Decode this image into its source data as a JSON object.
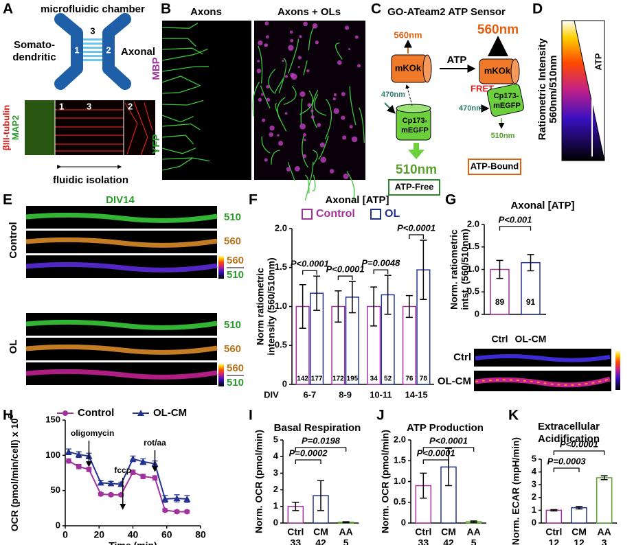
{
  "panels": {
    "letters": [
      "A",
      "B",
      "C",
      "D",
      "E",
      "F",
      "G",
      "H",
      "I",
      "J",
      "K"
    ],
    "A": {
      "title": "microfluidic chamber",
      "left": [
        "Somato-",
        "dendritic"
      ],
      "right": "Axonal",
      "compartments": [
        "1",
        "2",
        "3"
      ],
      "stains": [
        "MAP2",
        "βIII-tubulin"
      ],
      "caption": "fluidic isolation"
    },
    "B": {
      "columns": [
        "Axons",
        "Axons + OLs"
      ],
      "stains": [
        "MBP",
        "YFP"
      ]
    },
    "C": {
      "title": "GO-ATeam2 ATP Sensor",
      "ligand": "ATP",
      "acceptor": "mKOk",
      "donor": [
        "Cp173-",
        "mEGFP"
      ],
      "excitation": "470nm",
      "emission_acceptor": "560nm",
      "emission_donor": "510nm",
      "fret": "FRET",
      "states": [
        "ATP-Free",
        "ATP-Bound"
      ]
    },
    "D": {
      "label": [
        "Ratiometric Intensity",
        "560nm/510nm"
      ],
      "arrow": "ATP"
    },
    "E": {
      "title": "DIV14",
      "groups": [
        "Control",
        "OL"
      ],
      "channels": [
        "510",
        "560"
      ]
    },
    "G": {
      "images": [
        "Ctrl",
        "OL-CM"
      ]
    }
  },
  "chart_data": [
    {
      "type": "bar",
      "title": "Axonal [ATP]",
      "ylabel": [
        "Norm  ratiometric",
        "intensity (560/510nm)"
      ],
      "x_label": "DIV",
      "categories": [
        "6-7",
        "8-9",
        "10-11",
        "14-15"
      ],
      "series": [
        {
          "name": "Control",
          "color": "#a0329b",
          "values": [
            1.0,
            1.0,
            1.0,
            1.0
          ],
          "errors": [
            0.28,
            0.2,
            0.25,
            0.14
          ],
          "n": [
            142,
            172,
            34,
            76
          ]
        },
        {
          "name": "OL",
          "color": "#23318e",
          "values": [
            1.17,
            1.12,
            1.15,
            1.47
          ],
          "errors": [
            0.22,
            0.2,
            0.25,
            0.38
          ],
          "n": [
            177,
            195,
            52,
            78
          ]
        }
      ],
      "p_labels": [
        "P<0.0001",
        "P<0.0001",
        "P=0.0048",
        "P<0.0001"
      ],
      "ylim": [
        0,
        2
      ],
      "yticks": [
        0,
        0.5,
        {
          "value": 1,
          "label": "1.0"
        },
        1.5,
        {
          "value": 2,
          "label": "2.0"
        }
      ]
    },
    {
      "type": "bar",
      "title": "Axonal [ATP]",
      "ylabel": [
        "Norm. ratiometric",
        "intst. (560/510nm)"
      ],
      "categories": [
        "Ctrl",
        "OL-CM"
      ],
      "values": [
        1.0,
        1.15
      ],
      "errors": [
        0.2,
        0.18
      ],
      "n": [
        89,
        91
      ],
      "colors": [
        "#a0329b",
        "#23318e"
      ],
      "p_labels": [
        "P<0.001"
      ],
      "ylim": [
        0,
        2
      ],
      "yticks": [
        0,
        0.5,
        {
          "value": 1,
          "label": "1.0"
        },
        1.5,
        {
          "value": 2,
          "label": "2.0"
        }
      ]
    },
    {
      "type": "line",
      "ylabel": "OCR (pmol/min/cell) x 10",
      "ylabel_sup": "5",
      "xlabel": "Time (min)",
      "x": [
        2,
        8,
        14,
        21,
        27,
        33,
        40,
        46,
        53,
        59,
        66,
        72
      ],
      "series": [
        {
          "name": "Control",
          "color": "#a0329b",
          "marker": "circle",
          "values": [
            92,
            84,
            80,
            45,
            44,
            44,
            76,
            70,
            68,
            22,
            20,
            20
          ],
          "errors": [
            3,
            3,
            3,
            2,
            2,
            2,
            3,
            3,
            3,
            2,
            2,
            2
          ]
        },
        {
          "name": "OL-CM",
          "color": "#23318e",
          "marker": "triangle",
          "values": [
            105,
            101,
            99,
            61,
            60,
            59,
            95,
            91,
            88,
            38,
            39,
            38
          ],
          "errors": [
            4,
            4,
            4,
            3,
            3,
            3,
            4,
            4,
            4,
            5,
            5,
            5
          ]
        }
      ],
      "annotations": [
        "oligomycin",
        "fccp",
        "rot/aa"
      ],
      "xlim": [
        0,
        80
      ],
      "xticks": [
        0,
        20,
        40,
        60,
        80
      ],
      "ylim": [
        0,
        150
      ],
      "yticks": [
        0,
        50,
        100,
        150
      ]
    },
    {
      "type": "bar",
      "title": "Basal Respiration",
      "ylabel": [
        "Norm. OCR (pmol/min)"
      ],
      "categories": [
        "Ctrl",
        "CM",
        "AA"
      ],
      "values": [
        1.0,
        1.65,
        0.05
      ],
      "errors": [
        0.25,
        0.9,
        0.03
      ],
      "n": [
        33,
        42,
        5
      ],
      "colors": [
        "#a0329b",
        "#23318e",
        "#5aa02c"
      ],
      "p_labels": [
        "P=0.0002",
        "P=0.0198"
      ],
      "ylim": [
        0,
        5
      ],
      "yticks": [
        0,
        1,
        2,
        3,
        4,
        5
      ]
    },
    {
      "type": "bar",
      "title": "ATP Production",
      "ylabel": [
        "Norm. OCR (pmol/min)"
      ],
      "categories": [
        "Ctrl",
        "CM",
        "AA"
      ],
      "values": [
        0.9,
        1.35,
        0.03
      ],
      "errors": [
        0.3,
        0.45,
        0.02
      ],
      "n": [
        33,
        42,
        5
      ],
      "colors": [
        "#a0329b",
        "#23318e",
        "#5aa02c"
      ],
      "p_labels": [
        "P<0.0001",
        "P<0.0001"
      ],
      "ylim": [
        0,
        2
      ],
      "yticks": [
        0,
        0.5,
        {
          "value": 1,
          "label": "1.0"
        },
        1.5,
        {
          "value": 2,
          "label": "2.0"
        }
      ]
    },
    {
      "type": "bar",
      "title": [
        "Extracellular",
        "Acidification"
      ],
      "ylabel": [
        "Norm. ECAR (mpH/min)"
      ],
      "categories": [
        "Ctrl",
        "CM",
        "AA"
      ],
      "values": [
        1.0,
        1.2,
        3.55
      ],
      "errors": [
        0.05,
        0.1,
        0.15
      ],
      "n": [
        12,
        12,
        3
      ],
      "colors": [
        "#a0329b",
        "#23318e",
        "#5aa02c"
      ],
      "p_labels": [
        "P=0.0003",
        "P<0.0001"
      ],
      "ylim": [
        0,
        5
      ],
      "yticks": [
        0,
        1,
        2,
        3,
        4,
        5
      ]
    }
  ]
}
